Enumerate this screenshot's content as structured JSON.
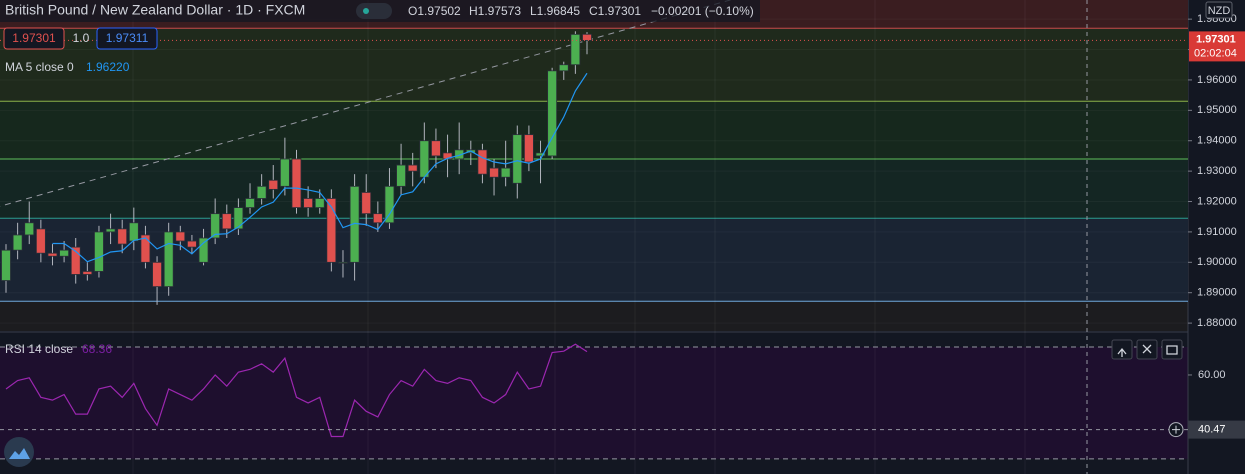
{
  "chart_data": {
    "type": "candlestick",
    "title": "British Pound / New Zealand Dollar · 1D · FXCM",
    "ohlc_labels": [
      "O1.97502",
      "H1.97573",
      "L1.96845",
      "C1.97301",
      "−0.00201 (−0.10%)"
    ],
    "bid_label": "1.97301",
    "lot_label": "1.0",
    "ask_label": "1.97311",
    "currency": "NZD",
    "countdown": "02:02:04",
    "last_price": {
      "value": 1.97301,
      "label": "1.97301"
    },
    "up_color": "#4caf50",
    "down_color": "#e0514e",
    "open": [
      1.894,
      1.904,
      1.909,
      1.911,
      1.903,
      1.902,
      1.905,
      1.897,
      1.897,
      1.91,
      1.911,
      1.907,
      1.909,
      1.9,
      1.892,
      1.91,
      1.907,
      1.9,
      1.908,
      1.916,
      1.911,
      1.918,
      1.921,
      1.927,
      1.925,
      1.934,
      1.921,
      1.918,
      1.921,
      1.9,
      1.9,
      1.923,
      1.916,
      1.913,
      1.925,
      1.932,
      1.928,
      1.94,
      1.936,
      1.934,
      1.936,
      1.937,
      1.931,
      1.928,
      1.926,
      1.942,
      1.935,
      1.935,
      1.963,
      1.965,
      1.97502
    ],
    "high": [
      1.906,
      1.913,
      1.92,
      1.914,
      1.906,
      1.907,
      1.908,
      1.9,
      1.912,
      1.916,
      1.914,
      1.918,
      1.912,
      1.902,
      1.913,
      1.912,
      1.909,
      1.911,
      1.921,
      1.919,
      1.921,
      1.926,
      1.929,
      1.932,
      1.941,
      1.937,
      1.925,
      1.924,
      1.924,
      1.904,
      1.929,
      1.929,
      1.92,
      1.931,
      1.939,
      1.936,
      1.946,
      1.944,
      1.942,
      1.946,
      1.94,
      1.939,
      1.934,
      1.94,
      1.945,
      1.945,
      1.94,
      1.964,
      1.966,
      1.976,
      1.97573
    ],
    "low": [
      1.89,
      1.901,
      1.906,
      1.9,
      1.899,
      1.9,
      1.893,
      1.894,
      1.895,
      1.906,
      1.903,
      1.904,
      1.898,
      1.886,
      1.889,
      1.904,
      1.903,
      1.899,
      1.906,
      1.908,
      1.909,
      1.916,
      1.919,
      1.921,
      1.922,
      1.916,
      1.915,
      1.916,
      1.897,
      1.895,
      1.894,
      1.912,
      1.91,
      1.911,
      1.922,
      1.925,
      1.926,
      1.931,
      1.928,
      1.929,
      1.932,
      1.926,
      1.922,
      1.925,
      1.921,
      1.93,
      1.926,
      1.934,
      1.96,
      1.962,
      1.96845
    ],
    "close": [
      1.904,
      1.909,
      1.913,
      1.903,
      1.902,
      1.904,
      1.896,
      1.896,
      1.91,
      1.911,
      1.906,
      1.913,
      1.9,
      1.892,
      1.91,
      1.907,
      1.905,
      1.908,
      1.916,
      1.911,
      1.918,
      1.921,
      1.925,
      1.924,
      1.934,
      1.918,
      1.918,
      1.921,
      1.9,
      1.9,
      1.925,
      1.916,
      1.913,
      1.925,
      1.932,
      1.93,
      1.94,
      1.935,
      1.934,
      1.937,
      1.937,
      1.929,
      1.928,
      1.931,
      1.942,
      1.933,
      1.936,
      1.963,
      1.965,
      1.975,
      1.97301
    ],
    "ma": {
      "name": "MA 5 close 0",
      "value_label": "1.96220",
      "color": "#2196f3",
      "values": [
        null,
        null,
        null,
        null,
        1.9062,
        1.9062,
        1.9036,
        1.9002,
        1.9016,
        1.9034,
        1.9038,
        1.9072,
        1.908,
        1.9044,
        1.9062,
        1.9056,
        1.9028,
        1.9064,
        1.9092,
        1.9094,
        1.9116,
        1.9148,
        1.9182,
        1.9198,
        1.9244,
        1.9244,
        1.9238,
        1.923,
        1.9182,
        1.9114,
        1.9128,
        1.9124,
        1.9108,
        1.9158,
        1.9222,
        1.9232,
        1.928,
        1.9324,
        1.9342,
        1.9352,
        1.9366,
        1.9344,
        1.933,
        1.9324,
        1.9334,
        1.9326,
        1.934,
        1.941,
        1.9478,
        1.9564,
        1.9622
      ]
    },
    "ylim": [
      1.8774,
      1.9863
    ],
    "yticks": [
      {
        "value": 1.88,
        "label": "1.88000"
      },
      {
        "value": 1.89,
        "label": "1.89000"
      },
      {
        "value": 1.9,
        "label": "1.90000"
      },
      {
        "value": 1.91,
        "label": "1.91000"
      },
      {
        "value": 1.92,
        "label": "1.92000"
      },
      {
        "value": 1.93,
        "label": "1.93000"
      },
      {
        "value": 1.94,
        "label": "1.94000"
      },
      {
        "value": 1.95,
        "label": "1.95000"
      },
      {
        "value": 1.96,
        "label": "1.96000"
      },
      {
        "value": 1.97,
        "label": "1.97000"
      },
      {
        "value": 1.98,
        "label": "1.98000"
      }
    ],
    "levels": [
      {
        "value": 1.977,
        "color": "#c84b4b",
        "fill": "#3a1d20"
      },
      {
        "value": 1.953,
        "color": "#8bb04a",
        "fill": "#1f2a1c"
      },
      {
        "value": 1.934,
        "color": "#5fbf5a",
        "fill": "#16281d"
      },
      {
        "value": 1.9145,
        "color": "#2a9d8f",
        "fill": "#142623"
      },
      {
        "value": 1.8872,
        "color": "#6fa8dc",
        "fill": "#1a2433"
      }
    ],
    "trendline": {
      "start": [
        0,
        1.919
      ],
      "end": [
        50,
        1.973
      ]
    },
    "rsi": {
      "name": "RSI 14 close",
      "value_label": "68.36",
      "color": "#9c27b0",
      "values": [
        55,
        58,
        59,
        52,
        51,
        53,
        46,
        46,
        55,
        56,
        52,
        57,
        48,
        42,
        55,
        53,
        51,
        55,
        60,
        56,
        61,
        62,
        64,
        61,
        66,
        52,
        50,
        52,
        38,
        38,
        51,
        47,
        45,
        53,
        58,
        56,
        62,
        58,
        57,
        59,
        58,
        52,
        50,
        53,
        61,
        55,
        56,
        68,
        68.5,
        71,
        68.36
      ],
      "ylim": [
        24.6,
        75
      ],
      "yticks": [
        {
          "value": 60,
          "label": "60.00"
        }
      ],
      "bands": [
        30,
        70
      ],
      "cursor": {
        "value": 40.47,
        "label": "40.47"
      }
    }
  }
}
